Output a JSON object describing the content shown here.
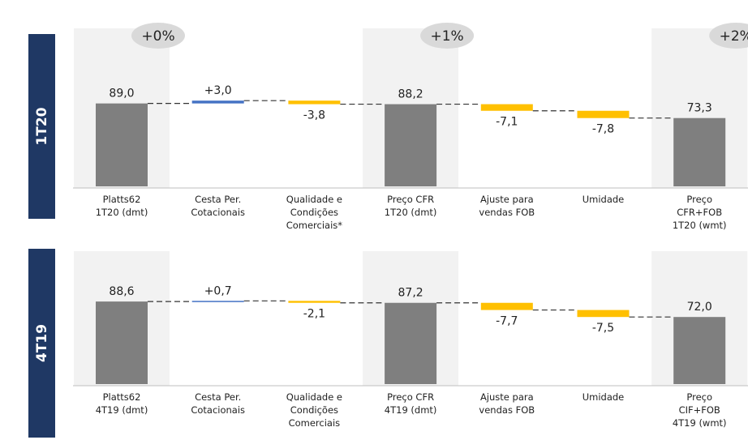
{
  "chart_data": [
    {
      "type": "waterfall",
      "panel_label": "1T20",
      "categories": [
        "Platts62\n1T20 (dmt)",
        "Cesta Per.\nCotacionais",
        "Qualidade e\nCondições\nComerciais*",
        "Preço CFR\n1T20 (dmt)",
        "Ajuste para\nvendas FOB",
        "Umidade",
        "Preço\nCFR+FOB\n1T20 (wmt)"
      ],
      "measure": [
        "total",
        "delta",
        "delta",
        "total",
        "delta",
        "delta",
        "total"
      ],
      "values": [
        89.0,
        3.0,
        -3.8,
        88.2,
        -7.1,
        -7.8,
        73.3
      ],
      "value_labels": [
        "89,0",
        "+3,0",
        "-3,8",
        "88,2",
        "-7,1",
        "-7,8",
        "73,3"
      ],
      "badges": [
        "+0%",
        null,
        null,
        "+1%",
        null,
        null,
        "+2%"
      ],
      "highlight": [
        true,
        false,
        false,
        true,
        false,
        false,
        true
      ],
      "colors": {
        "total": "#7f7f7f",
        "increase": "#4472c4",
        "decrease": "#ffc000"
      },
      "ylim": [
        0,
        100
      ]
    },
    {
      "type": "waterfall",
      "panel_label": "4T19",
      "categories": [
        "Platts62\n4T19 (dmt)",
        "Cesta Per.\nCotacionais",
        "Qualidade e\nCondições\nComerciais",
        "Preço CFR\n4T19 (dmt)",
        "Ajuste para\nvendas FOB",
        "Umidade",
        "Preço\nCIF+FOB\n4T19 (wmt)"
      ],
      "measure": [
        "total",
        "delta",
        "delta",
        "total",
        "delta",
        "delta",
        "total"
      ],
      "values": [
        88.6,
        0.7,
        -2.1,
        87.2,
        -7.7,
        -7.5,
        72.0
      ],
      "value_labels": [
        "88,6",
        "+0,7",
        "-2,1",
        "87,2",
        "-7,7",
        "-7,5",
        "72,0"
      ],
      "highlight": [
        true,
        false,
        false,
        true,
        false,
        false,
        true
      ],
      "colors": {
        "total": "#7f7f7f",
        "increase": "#4472c4",
        "decrease": "#ffc000"
      },
      "ylim": [
        0,
        100
      ]
    }
  ]
}
